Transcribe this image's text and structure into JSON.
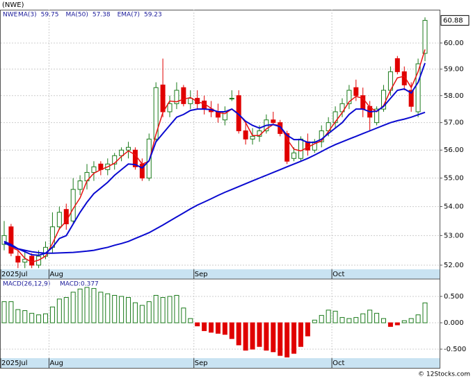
{
  "chart_data": [
    {
      "type": "candlestick",
      "title": "(NWE)",
      "symbol": "NWE",
      "log_scale": true,
      "grid": true,
      "categories": [
        "2025Jul",
        null,
        null,
        null,
        null,
        null,
        null,
        "Aug",
        null,
        null,
        null,
        null,
        null,
        null,
        null,
        null,
        null,
        null,
        null,
        null,
        null,
        null,
        null,
        null,
        null,
        null,
        null,
        null,
        "Sep",
        null,
        null,
        null,
        null,
        null,
        null,
        null,
        null,
        null,
        null,
        null,
        null,
        null,
        null,
        null,
        null,
        null,
        null,
        null,
        "Oct",
        null,
        null,
        null,
        null,
        null,
        null,
        null,
        null,
        null,
        null,
        null,
        null,
        null
      ],
      "open": [
        52.7,
        53.3,
        52.3,
        52.1,
        52.3,
        52.0,
        52.3,
        52.6,
        53.3,
        53.9,
        53.5,
        54.6,
        54.9,
        55.2,
        55.5,
        55.3,
        55.5,
        55.8,
        56.0,
        56.0,
        55.5,
        55.0,
        56.4,
        58.4,
        57.4,
        57.7,
        58.3,
        57.7,
        57.9,
        57.8,
        57.5,
        57.4,
        57.1,
        57.9,
        58.0,
        56.7,
        56.4,
        56.5,
        56.7,
        57.1,
        57.0,
        56.6,
        55.7,
        55.7,
        56.3,
        56.0,
        56.3,
        56.7,
        57.0,
        57.4,
        57.7,
        58.3,
        58.0,
        57.6,
        57.0,
        57.5,
        58.2,
        59.4,
        58.9,
        58.2,
        57.4,
        59.6
      ],
      "high": [
        53.5,
        53.4,
        52.5,
        52.5,
        52.4,
        52.5,
        52.8,
        53.8,
        54.0,
        54.1,
        55.0,
        55.1,
        55.5,
        55.6,
        55.6,
        55.7,
        55.9,
        56.1,
        56.3,
        56.1,
        55.7,
        56.6,
        58.5,
        59.4,
        58.0,
        58.5,
        58.4,
        58.2,
        58.2,
        58.0,
        57.8,
        57.7,
        57.6,
        58.2,
        58.2,
        57.0,
        56.8,
        56.9,
        57.3,
        57.4,
        57.1,
        56.7,
        56.1,
        56.5,
        56.6,
        56.4,
        56.9,
        57.2,
        57.6,
        57.9,
        58.4,
        58.6,
        58.3,
        57.8,
        57.6,
        58.4,
        59.1,
        59.5,
        59.1,
        58.5,
        59.4,
        61.0
      ],
      "low": [
        52.5,
        52.3,
        51.9,
        51.9,
        51.9,
        51.9,
        52.2,
        52.4,
        53.2,
        53.2,
        53.4,
        54.4,
        54.6,
        54.9,
        55.1,
        55.1,
        55.3,
        55.6,
        55.7,
        55.3,
        54.9,
        54.9,
        56.3,
        57.2,
        57.2,
        57.5,
        57.6,
        57.5,
        57.5,
        57.3,
        57.2,
        57.0,
        56.9,
        57.8,
        56.6,
        56.2,
        56.2,
        56.3,
        56.6,
        56.9,
        56.5,
        55.5,
        55.6,
        55.6,
        55.8,
        55.9,
        56.1,
        56.5,
        56.8,
        57.2,
        57.5,
        57.8,
        57.2,
        56.7,
        56.9,
        57.4,
        58.0,
        58.8,
        58.2,
        57.4,
        57.2,
        59.3
      ],
      "close": [
        53.0,
        52.4,
        52.1,
        52.2,
        52.0,
        52.3,
        52.6,
        53.3,
        53.8,
        53.4,
        54.6,
        54.9,
        55.2,
        55.4,
        55.3,
        55.5,
        55.8,
        56.0,
        56.1,
        55.4,
        55.0,
        56.4,
        58.3,
        57.4,
        57.7,
        58.2,
        57.7,
        57.9,
        57.7,
        57.5,
        57.4,
        57.2,
        57.4,
        57.9,
        56.7,
        56.4,
        56.5,
        56.7,
        57.1,
        57.0,
        56.6,
        55.6,
        55.9,
        56.4,
        56.0,
        56.3,
        56.7,
        57.0,
        57.4,
        57.7,
        58.2,
        58.0,
        57.5,
        57.2,
        57.5,
        58.2,
        58.9,
        58.9,
        58.4,
        57.6,
        59.2,
        60.88
      ],
      "up_color": "#1a7a1a",
      "down_color": "#e00000",
      "series": [
        {
          "name": "MA(3)",
          "legend_value": 59.75,
          "color": "#e81010",
          "width": 1.5,
          "values": [
            52.8,
            52.6,
            52.5,
            52.23,
            52.1,
            52.17,
            52.3,
            52.73,
            53.23,
            53.5,
            53.93,
            54.3,
            54.9,
            55.17,
            55.3,
            55.4,
            55.53,
            55.77,
            55.97,
            55.83,
            55.5,
            55.6,
            56.57,
            57.37,
            57.8,
            57.77,
            57.87,
            57.93,
            57.77,
            57.7,
            57.53,
            57.37,
            57.33,
            57.5,
            57.33,
            57.0,
            56.53,
            56.53,
            56.77,
            56.93,
            56.9,
            56.4,
            56.03,
            55.97,
            56.1,
            56.23,
            56.33,
            56.67,
            57.03,
            57.37,
            57.77,
            57.97,
            57.9,
            57.57,
            57.4,
            57.63,
            58.2,
            58.67,
            58.73,
            58.3,
            58.9,
            59.75
          ]
        },
        {
          "name": "MA(50)",
          "legend_value": 57.38,
          "color": "#0a0ad0",
          "width": 2,
          "values": [
            52.75,
            52.65,
            52.55,
            52.5,
            52.45,
            52.42,
            52.4,
            52.4,
            52.41,
            52.42,
            52.43,
            52.45,
            52.47,
            52.5,
            52.55,
            52.6,
            52.67,
            52.73,
            52.8,
            52.9,
            53.0,
            53.1,
            53.23,
            53.36,
            53.5,
            53.64,
            53.78,
            53.92,
            54.05,
            54.16,
            54.27,
            54.39,
            54.5,
            54.6,
            54.7,
            54.8,
            54.9,
            55.0,
            55.1,
            55.2,
            55.3,
            55.4,
            55.5,
            55.6,
            55.7,
            55.82,
            55.95,
            56.08,
            56.2,
            56.3,
            56.4,
            56.5,
            56.6,
            56.7,
            56.8,
            56.9,
            57.0,
            57.07,
            57.13,
            57.2,
            57.29,
            57.38
          ]
        },
        {
          "name": "EMA(7)",
          "legend_value": 59.23,
          "color": "#0a0ad0",
          "width": 2,
          "values": [
            52.8,
            52.7,
            52.55,
            52.45,
            52.35,
            52.33,
            52.4,
            52.6,
            52.9,
            53.0,
            53.4,
            53.8,
            54.15,
            54.45,
            54.65,
            54.85,
            55.1,
            55.3,
            55.5,
            55.48,
            55.36,
            55.62,
            56.3,
            56.6,
            56.9,
            57.2,
            57.3,
            57.45,
            57.5,
            57.5,
            57.48,
            57.4,
            57.4,
            57.5,
            57.3,
            57.05,
            56.9,
            56.8,
            56.9,
            56.93,
            56.85,
            56.54,
            56.38,
            56.38,
            56.28,
            56.28,
            56.39,
            56.6,
            56.8,
            57.0,
            57.3,
            57.5,
            57.5,
            57.4,
            57.42,
            57.6,
            57.9,
            58.2,
            58.25,
            58.1,
            58.5,
            59.23
          ]
        }
      ],
      "ylim": [
        51.86,
        61.3
      ],
      "yticks": [
        {
          "value": 52,
          "label": "52.00"
        },
        {
          "value": 53,
          "label": "53.00"
        },
        {
          "value": 54,
          "label": "54.00"
        },
        {
          "value": 55,
          "label": "55.00"
        },
        {
          "value": 56,
          "label": "56.00"
        },
        {
          "value": 57,
          "label": "57.00"
        },
        {
          "value": 58,
          "label": "58.00"
        },
        {
          "value": 59,
          "label": "59.00"
        },
        {
          "value": 60,
          "label": "60.00"
        }
      ]
    },
    {
      "type": "bar",
      "title": "MACD(26,12,9)",
      "legend": "MACD:0.377",
      "grid": true,
      "categories": [
        "2025Jul",
        null,
        null,
        null,
        null,
        null,
        null,
        "Aug",
        null,
        null,
        null,
        null,
        null,
        null,
        null,
        null,
        null,
        null,
        null,
        null,
        null,
        null,
        null,
        null,
        null,
        null,
        null,
        null,
        "Sep",
        null,
        null,
        null,
        null,
        null,
        null,
        null,
        null,
        null,
        null,
        null,
        null,
        null,
        null,
        null,
        null,
        null,
        null,
        null,
        "Oct",
        null,
        null,
        null,
        null,
        null,
        null,
        null,
        null,
        null,
        null,
        null,
        null,
        null
      ],
      "values": [
        0.4,
        0.4,
        0.25,
        0.23,
        0.18,
        0.15,
        0.17,
        0.3,
        0.45,
        0.48,
        0.58,
        0.64,
        0.67,
        0.65,
        0.58,
        0.55,
        0.52,
        0.5,
        0.48,
        0.38,
        0.33,
        0.4,
        0.52,
        0.48,
        0.5,
        0.52,
        0.28,
        0.08,
        -0.06,
        -0.15,
        -0.18,
        -0.2,
        -0.22,
        -0.3,
        -0.42,
        -0.52,
        -0.5,
        -0.45,
        -0.52,
        -0.55,
        -0.62,
        -0.65,
        -0.58,
        -0.45,
        -0.25,
        0.05,
        0.14,
        0.24,
        0.22,
        0.1,
        0.08,
        0.1,
        0.17,
        0.24,
        0.18,
        0.08,
        -0.07,
        -0.04,
        0.04,
        0.08,
        0.15,
        0.377
      ],
      "up_color": "#1a7a1a",
      "down_color": "#e00000",
      "ylim": [
        -0.671,
        0.829
      ],
      "yticks": [
        {
          "value": -0.5,
          "label": "-0.500"
        },
        {
          "value": 0,
          "label": "0.000"
        },
        {
          "value": 0.5,
          "label": "0.500"
        }
      ]
    }
  ],
  "footer": "© 12Stocks.com"
}
